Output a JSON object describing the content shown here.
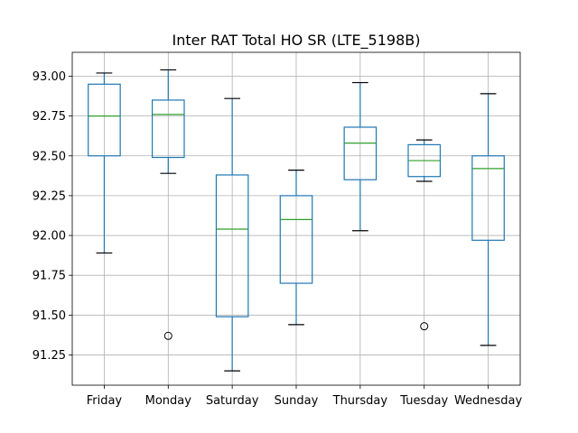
{
  "chart_data": {
    "type": "box",
    "title": "Inter RAT Total HO SR (LTE_5198B)",
    "xlabel": "",
    "ylabel": "",
    "ylim": [
      91.06,
      93.15
    ],
    "yticks": [
      91.25,
      91.5,
      91.75,
      92.0,
      92.25,
      92.5,
      92.75,
      93.0
    ],
    "ytick_labels": [
      "91.25",
      "91.50",
      "91.75",
      "92.00",
      "92.25",
      "92.50",
      "92.75",
      "93.00"
    ],
    "grid": true,
    "colors": {
      "box": "#1f77b4",
      "median": "#2ca02c",
      "cap": "#000000",
      "grid": "#b0b0b0"
    },
    "categories": [
      "Friday",
      "Monday",
      "Saturday",
      "Sunday",
      "Thursday",
      "Tuesday",
      "Wednesday"
    ],
    "boxes": [
      {
        "label": "Friday",
        "whislo": 91.89,
        "q1": 92.5,
        "med": 92.75,
        "q3": 92.95,
        "whishi": 93.02,
        "fliers": []
      },
      {
        "label": "Monday",
        "whislo": 92.39,
        "q1": 92.49,
        "med": 92.76,
        "q3": 92.85,
        "whishi": 93.04,
        "fliers": [
          91.37
        ]
      },
      {
        "label": "Saturday",
        "whislo": 91.15,
        "q1": 91.49,
        "med": 92.04,
        "q3": 92.38,
        "whishi": 92.86,
        "fliers": []
      },
      {
        "label": "Sunday",
        "whislo": 91.44,
        "q1": 91.7,
        "med": 92.1,
        "q3": 92.25,
        "whishi": 92.41,
        "fliers": []
      },
      {
        "label": "Thursday",
        "whislo": 92.03,
        "q1": 92.35,
        "med": 92.58,
        "q3": 92.68,
        "whishi": 92.96,
        "fliers": []
      },
      {
        "label": "Tuesday",
        "whislo": 92.34,
        "q1": 92.37,
        "med": 92.47,
        "q3": 92.57,
        "whishi": 92.6,
        "fliers": [
          91.43
        ]
      },
      {
        "label": "Wednesday",
        "whislo": 91.31,
        "q1": 91.97,
        "med": 92.42,
        "q3": 92.5,
        "whishi": 92.89,
        "fliers": []
      }
    ]
  }
}
